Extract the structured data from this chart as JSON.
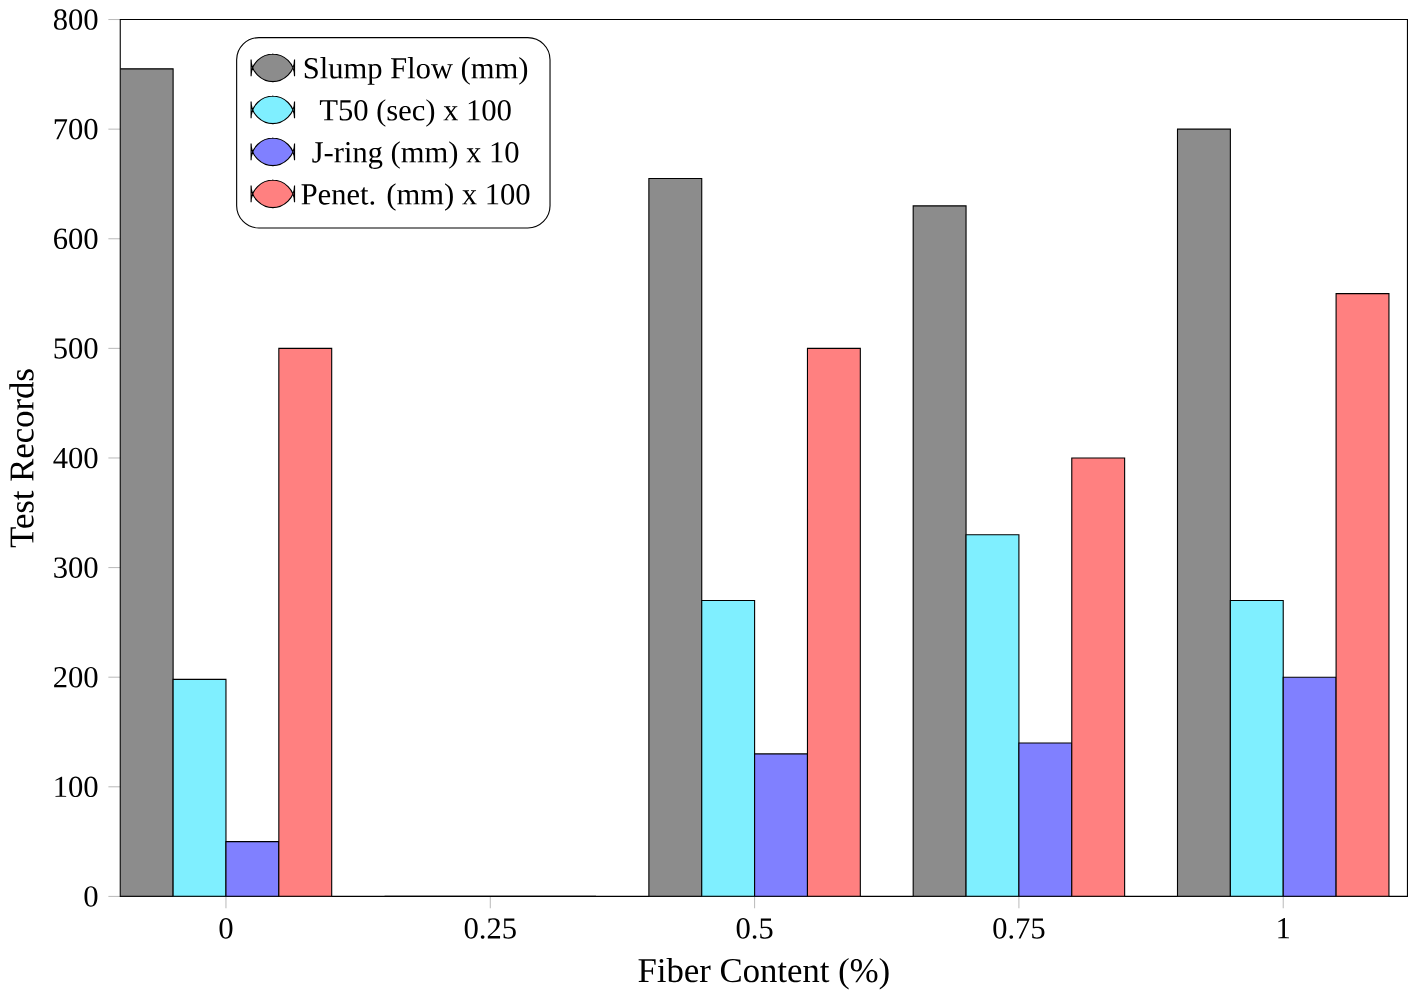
{
  "chart_data": {
    "type": "bar",
    "xlabel": "Fiber Content (%)",
    "ylabel": "Test Records",
    "categories": [
      "0",
      "0.25",
      "0.5",
      "0.75",
      "1"
    ],
    "series": [
      {
        "name": "Slump Flow (mm)",
        "color": "#8c8c8c",
        "values": [
          755,
          0,
          655,
          630,
          700
        ]
      },
      {
        "name": "T50 (sec) x 100",
        "color": "#7fefff",
        "values": [
          198,
          0,
          270,
          330,
          270
        ]
      },
      {
        "name": "J-ring (mm) x 10",
        "color": "#8080ff",
        "values": [
          50,
          0,
          130,
          140,
          200
        ]
      },
      {
        "name": "Penet. (mm) x 100",
        "color": "#ff8080",
        "values": [
          500,
          0,
          500,
          400,
          550
        ]
      }
    ],
    "ylim": [
      0,
      800
    ],
    "yticks": [
      0,
      100,
      200,
      300,
      400,
      500,
      600,
      700,
      800
    ],
    "legend": "top left",
    "grid": false
  }
}
